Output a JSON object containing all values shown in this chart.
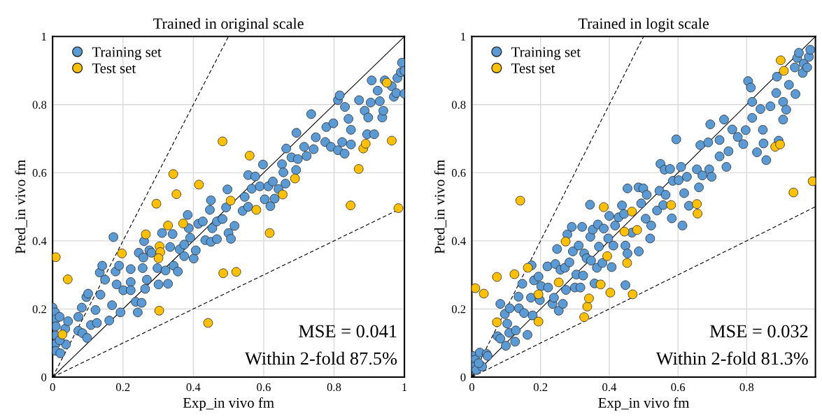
{
  "chart_data": [
    {
      "type": "scatter",
      "title": "Trained in original scale",
      "xlabel": "Exp_in vivo fm",
      "ylabel": "Pred_in vivo fm",
      "xlim": [
        0,
        1
      ],
      "ylim": [
        0,
        1
      ],
      "xticks": [
        0,
        0.2,
        0.4,
        0.6,
        0.8,
        1
      ],
      "yticks": [
        0,
        0.2,
        0.4,
        0.6,
        0.8,
        1
      ],
      "grid": true,
      "legend": "top left",
      "marker": "circle",
      "annotations": [
        "MSE = 0.041",
        "Within 2-fold 87.5%"
      ],
      "series": [
        {
          "name": "Training set",
          "color": "#5b9bd5",
          "x": [
            0,
            0.007,
            0.009,
            0.009,
            0.009,
            0.009,
            0.009,
            0.02,
            0.022,
            0.036,
            0.038,
            0.044,
            0.02,
            0.073,
            0.073,
            0.083,
            0.085,
            0.098,
            0.096,
            0.101,
            0.109,
            0.122,
            0.126,
            0.134,
            0.141,
            0.136,
            0.149,
            0.161,
            0.173,
            0.169,
            0.179,
            0.182,
            0.189,
            0.193,
            0.201,
            0.222,
            0.222,
            0.222,
            0.236,
            0.242,
            0.253,
            0.245,
            0.258,
            0.256,
            0.263,
            0.268,
            0.26,
            0.275,
            0.281,
            0.298,
            0.301,
            0.311,
            0.321,
            0.328,
            0.334,
            0.341,
            0.344,
            0.356,
            0.361,
            0.374,
            0.374,
            0.384,
            0.391,
            0.387,
            0.401,
            0.407,
            0.414,
            0.427,
            0.434,
            0.447,
            0.45,
            0.45,
            0.454,
            0.467,
            0.467,
            0.483,
            0.493,
            0.497,
            0.5,
            0.507,
            0.517,
            0.54,
            0.546,
            0.556,
            0.556,
            0.566,
            0.576,
            0.589,
            0.598,
            0.603,
            0.613,
            0.619,
            0.626,
            0.631,
            0.642,
            0.652,
            0.656,
            0.662,
            0.664,
            0.679,
            0.692,
            0.693,
            0.697,
            0.715,
            0.722,
            0.735,
            0.742,
            0.748,
            0.775,
            0.778,
            0.791,
            0.798,
            0.811,
            0.816,
            0.811,
            0.823,
            0.83,
            0.831,
            0.841,
            0.848,
            0.848,
            0.871,
            0.887,
            0.894,
            0.897,
            0.904,
            0.907,
            0.914,
            0.924,
            0.93,
            0.937,
            0.94,
            0.944,
            0.964,
            0.97,
            0.977,
            0.98,
            0.99,
            0.993,
            1.0,
            1.0
          ],
          "values": [
            0.204,
            0.19,
            0.17,
            0.149,
            0.122,
            0.098,
            0.077,
            0.177,
            0.07,
            0.142,
            0.096,
            0.164,
            0.108,
            0.177,
            0.136,
            0.204,
            0.129,
            0.115,
            0.235,
            0.245,
            0.153,
            0.197,
            0.159,
            0.307,
            0.327,
            0.242,
            0.286,
            0.166,
            0.411,
            0.211,
            0.31,
            0.272,
            0.327,
            0.19,
            0.255,
            0.317,
            0.279,
            0.255,
            0.221,
            0.19,
            0.218,
            0.365,
            0.351,
            0.32,
            0.259,
            0.286,
            0.399,
            0.372,
            0.365,
            0.32,
            0.272,
            0.423,
            0.313,
            0.274,
            0.382,
            0.42,
            0.327,
            0.31,
            0.375,
            0.389,
            0.355,
            0.476,
            0.409,
            0.437,
            0.348,
            0.372,
            0.45,
            0.457,
            0.402,
            0.491,
            0.519,
            0.397,
            0.437,
            0.405,
            0.457,
            0.464,
            0.498,
            0.551,
            0.423,
            0.406,
            0.444,
            0.488,
            0.529,
            0.5,
            0.593,
            0.553,
            0.589,
            0.56,
            0.624,
            0.522,
            0.56,
            0.502,
            0.574,
            0.524,
            0.552,
            0.625,
            0.601,
            0.568,
            0.671,
            0.645,
            0.608,
            0.717,
            0.64,
            0.676,
            0.649,
            0.772,
            0.669,
            0.704,
            0.69,
            0.734,
            0.676,
            0.745,
            0.813,
            0.827,
            0.666,
            0.69,
            0.656,
            0.793,
            0.758,
            0.726,
            0.683,
            0.813,
            0.782,
            0.713,
            0.762,
            0.806,
            0.871,
            0.713,
            0.841,
            0.81,
            0.762,
            0.782,
            0.871,
            0.854,
            0.823,
            0.834,
            0.878,
            0.895,
            0.923,
            0.899,
            0.832
          ]
        },
        {
          "name": "Test set",
          "color": "#ffc000",
          "x": [
            0.009,
            0.043,
            0.028,
            0.197,
            0.295,
            0.343,
            0.352,
            0.416,
            0.483,
            0.56,
            0.265,
            0.328,
            0.371,
            0.304,
            0.306,
            0.301,
            0.303,
            0.442,
            0.485,
            0.522,
            0.506,
            0.579,
            0.617,
            0.654,
            0.689,
            0.847,
            0.87,
            0.883,
            0.89,
            0.95,
            0.964,
            0.983
          ],
          "values": [
            0.352,
            0.287,
            0.125,
            0.363,
            0.509,
            0.596,
            0.537,
            0.565,
            0.692,
            0.65,
            0.419,
            0.445,
            0.451,
            0.384,
            0.367,
            0.349,
            0.195,
            0.159,
            0.305,
            0.309,
            0.518,
            0.491,
            0.423,
            0.536,
            0.583,
            0.504,
            0.611,
            0.671,
            0.685,
            0.864,
            0.694,
            0.496
          ]
        },
        {
          "type": "line",
          "color": "#000000",
          "line_style": "solid",
          "marker": "none",
          "x": [
            0,
            1
          ],
          "values": [
            0,
            1
          ]
        },
        {
          "type": "line",
          "color": "#000000",
          "line_style": "dashed",
          "marker": "none",
          "x": [
            0,
            0.5
          ],
          "values": [
            0,
            1
          ]
        },
        {
          "type": "line",
          "color": "#000000",
          "line_style": "dashed",
          "marker": "none",
          "x": [
            0,
            1
          ],
          "values": [
            0,
            0.5
          ]
        }
      ]
    },
    {
      "type": "scatter",
      "title": "Trained in logit scale",
      "xlabel": "Exp_in vivo fm",
      "ylabel": "Pred_in vivo fm",
      "xlim": [
        0,
        1
      ],
      "ylim": [
        0,
        1
      ],
      "xticks": [
        0,
        0.2,
        0.4,
        0.6,
        0.8
      ],
      "yticks": [
        0,
        0.2,
        0.4,
        0.6,
        0.8,
        1
      ],
      "grid": true,
      "legend": "top left",
      "marker": "circle",
      "annotations": [
        "MSE = 0.032",
        "Within 2-fold 81.3%"
      ],
      "series": [
        {
          "name": "Training set",
          "color": "#5b9bd5",
          "x": [
            0.003,
            0.01,
            0.007,
            0.013,
            0.023,
            0.03,
            0.043,
            0.046,
            0.02,
            0.075,
            0.083,
            0.083,
            0.099,
            0.096,
            0.103,
            0.109,
            0.11,
            0.126,
            0.128,
            0.136,
            0.137,
            0.147,
            0.152,
            0.162,
            0.172,
            0.174,
            0.177,
            0.181,
            0.194,
            0.198,
            0.202,
            0.22,
            0.222,
            0.235,
            0.239,
            0.243,
            0.248,
            0.253,
            0.258,
            0.265,
            0.271,
            0.274,
            0.278,
            0.284,
            0.291,
            0.294,
            0.3,
            0.304,
            0.311,
            0.316,
            0.321,
            0.324,
            0.327,
            0.334,
            0.344,
            0.345,
            0.347,
            0.352,
            0.357,
            0.364,
            0.367,
            0.37,
            0.38,
            0.384,
            0.397,
            0.4,
            0.407,
            0.412,
            0.417,
            0.427,
            0.437,
            0.443,
            0.447,
            0.447,
            0.453,
            0.453,
            0.466,
            0.485,
            0.486,
            0.493,
            0.499,
            0.506,
            0.509,
            0.519,
            0.522,
            0.539,
            0.546,
            0.549,
            0.557,
            0.561,
            0.564,
            0.577,
            0.582,
            0.585,
            0.595,
            0.602,
            0.609,
            0.613,
            0.618,
            0.626,
            0.632,
            0.655,
            0.661,
            0.665,
            0.671,
            0.688,
            0.691,
            0.698,
            0.694,
            0.721,
            0.721,
            0.734,
            0.741,
            0.747,
            0.758,
            0.774,
            0.79,
            0.797,
            0.804,
            0.812,
            0.816,
            0.816,
            0.83,
            0.84,
            0.847,
            0.849,
            0.857,
            0.869,
            0.886,
            0.888,
            0.893,
            0.906,
            0.906,
            0.915,
            0.923,
            0.94,
            0.942,
            0.947,
            0.952,
            0.963,
            0.966,
            0.976,
            0.981,
            0.985
          ],
          "values": [
            0.062,
            0.051,
            0.031,
            0.021,
            0.072,
            0.031,
            0.068,
            0.062,
            0.041,
            0.12,
            0.113,
            0.215,
            0.092,
            0.185,
            0.157,
            0.13,
            0.202,
            0.104,
            0.137,
            0.236,
            0.202,
            0.274,
            0.188,
            0.124,
            0.233,
            0.328,
            0.181,
            0.284,
            0.295,
            0.226,
            0.267,
            0.325,
            0.263,
            0.215,
            0.233,
            0.332,
            0.376,
            0.195,
            0.315,
            0.215,
            0.321,
            0.256,
            0.419,
            0.337,
            0.441,
            0.369,
            0.263,
            0.301,
            0.386,
            0.263,
            0.441,
            0.298,
            0.363,
            0.349,
            0.506,
            0.412,
            0.342,
            0.433,
            0.275,
            0.321,
            0.448,
            0.383,
            0.335,
            0.436,
            0.407,
            0.473,
            0.323,
            0.386,
            0.445,
            0.469,
            0.504,
            0.479,
            0.386,
            0.27,
            0.363,
            0.554,
            0.424,
            0.557,
            0.369,
            0.51,
            0.554,
            0.465,
            0.535,
            0.407,
            0.445,
            0.489,
            0.547,
            0.626,
            0.505,
            0.609,
            0.535,
            0.611,
            0.466,
            0.576,
            0.698,
            0.578,
            0.617,
            0.445,
            0.54,
            0.588,
            0.503,
            0.61,
            0.557,
            0.681,
            0.592,
            0.689,
            0.61,
            0.588,
            0.742,
            0.696,
            0.648,
            0.756,
            0.617,
            0.663,
            0.727,
            0.705,
            0.684,
            0.725,
            0.869,
            0.85,
            0.808,
            0.761,
            0.66,
            0.787,
            0.726,
            0.686,
            0.637,
            0.795,
            0.834,
            0.882,
            0.694,
            0.756,
            0.808,
            0.785,
            0.858,
            0.909,
            0.831,
            0.937,
            0.952,
            0.893,
            0.92,
            0.909,
            0.94,
            0.961
          ]
        },
        {
          "name": "Test set",
          "color": "#ffc000",
          "x": [
            0.01,
            0.035,
            0.073,
            0.073,
            0.124,
            0.141,
            0.163,
            0.194,
            0.194,
            0.253,
            0.273,
            0.327,
            0.336,
            0.341,
            0.375,
            0.384,
            0.394,
            0.403,
            0.444,
            0.452,
            0.466,
            0.468,
            0.481,
            0.58,
            0.655,
            0.657,
            0.883,
            0.897,
            0.899,
            0.908,
            0.936,
            0.992
          ],
          "values": [
            0.261,
            0.245,
            0.294,
            0.161,
            0.302,
            0.518,
            0.321,
            0.243,
            0.163,
            0.278,
            0.398,
            0.176,
            0.207,
            0.231,
            0.272,
            0.499,
            0.355,
            0.248,
            0.427,
            0.335,
            0.486,
            0.243,
            0.432,
            0.505,
            0.508,
            0.48,
            0.676,
            0.683,
            0.93,
            0.899,
            0.542,
            0.575
          ]
        },
        {
          "type": "line",
          "color": "#000000",
          "line_style": "solid",
          "marker": "none",
          "x": [
            0,
            1
          ],
          "values": [
            0,
            1
          ]
        },
        {
          "type": "line",
          "color": "#000000",
          "line_style": "dashed",
          "marker": "none",
          "x": [
            0,
            0.5
          ],
          "values": [
            0,
            1
          ]
        },
        {
          "type": "line",
          "color": "#000000",
          "line_style": "dashed",
          "marker": "none",
          "x": [
            0,
            1
          ],
          "values": [
            0,
            0.5
          ]
        }
      ]
    }
  ]
}
